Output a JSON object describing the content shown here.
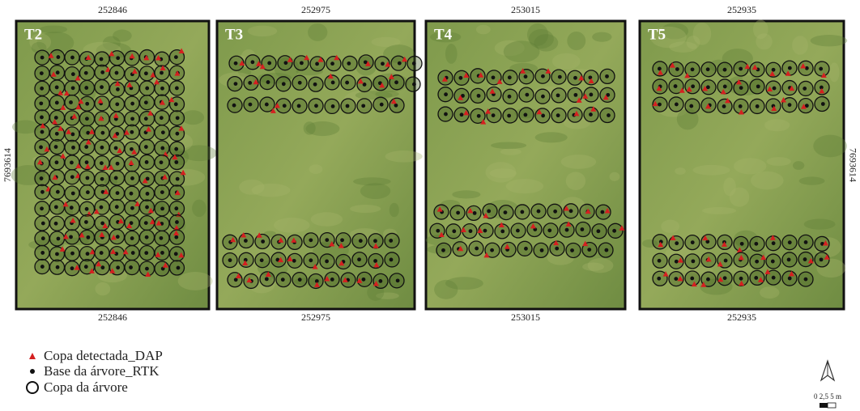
{
  "panels": [
    {
      "label": "T2",
      "top_coord": "252846",
      "bottom_coord": "252846"
    },
    {
      "label": "T3",
      "top_coord": "252975",
      "bottom_coord": "252975"
    },
    {
      "label": "T4",
      "top_coord": "253015",
      "bottom_coord": "253015"
    },
    {
      "label": "T5",
      "top_coord": "252935",
      "bottom_coord": "252935"
    }
  ],
  "left_coord": "7693614",
  "right_coord": "7693614",
  "legend": [
    "Copa detectada_DAP",
    "Base da árvore_RTK",
    "Copa da árvore"
  ],
  "scale": "0 2,5 5 m"
}
